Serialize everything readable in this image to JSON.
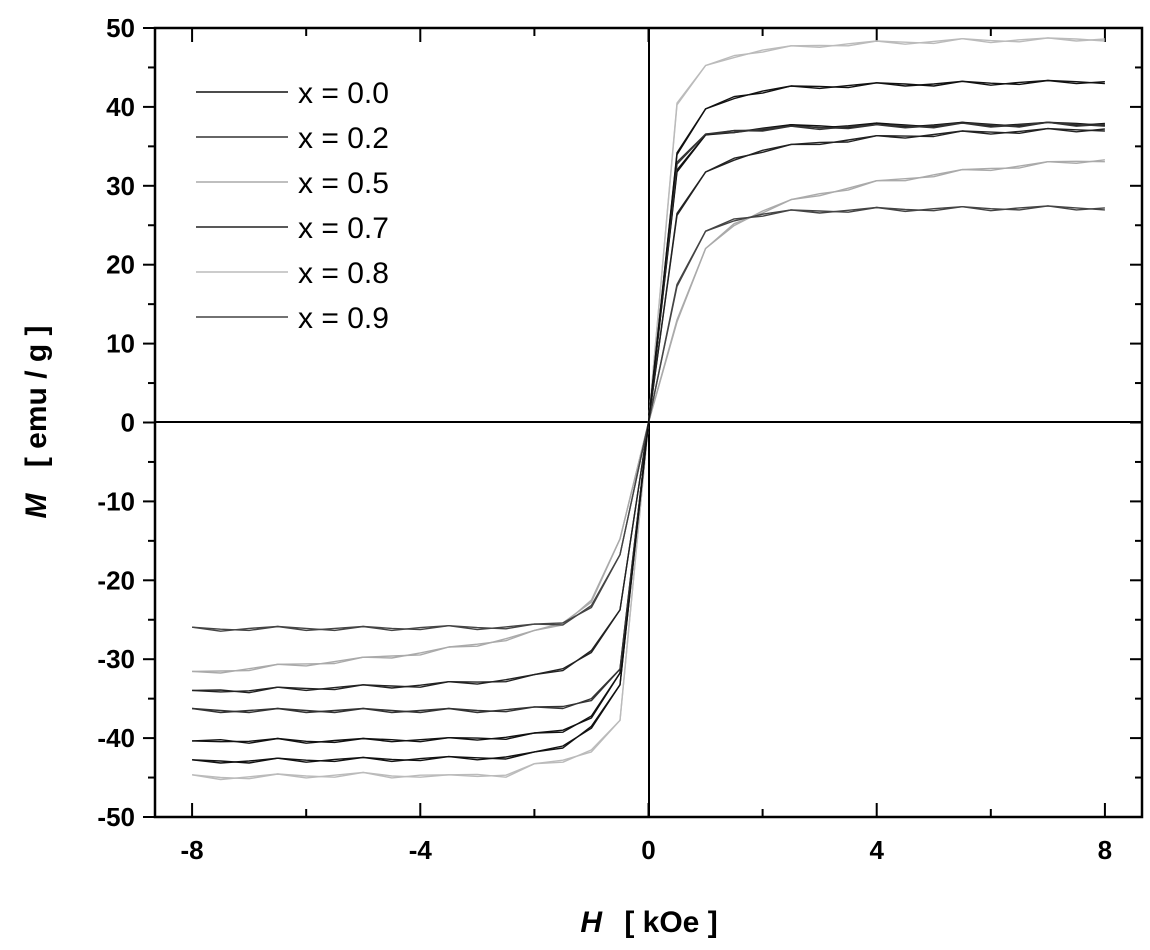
{
  "chart_data": {
    "type": "line",
    "title": "",
    "xlabel": {
      "symbol": "H",
      "unit": "[ kOe ]"
    },
    "ylabel": {
      "symbol": "M",
      "unit": "[ emu / g ]"
    },
    "xlim": [
      -8.65,
      8.65
    ],
    "ylim": [
      -50,
      50
    ],
    "x_ticks": [
      -8,
      -4,
      0,
      4,
      8
    ],
    "x_minor_ticks": [
      -6,
      -2,
      2,
      6
    ],
    "y_ticks": [
      -50,
      -40,
      -30,
      -20,
      -10,
      0,
      10,
      20,
      30,
      40,
      50
    ],
    "y_minor_ticks": [
      -45,
      -35,
      -25,
      -15,
      -5,
      5,
      15,
      25,
      35,
      45
    ],
    "x_tick_labels": [
      "-8",
      "-4",
      "0",
      "4",
      "8"
    ],
    "y_tick_labels": [
      "-50",
      "-40",
      "-30",
      "-20",
      "-10",
      "0",
      "10",
      "20",
      "30",
      "40",
      "50"
    ],
    "zero_lines": true,
    "grid": false,
    "legend_position": "top-left",
    "x": [
      -8,
      -7.5,
      -7,
      -6.5,
      -6,
      -5.5,
      -5,
      -4.5,
      -4,
      -3.5,
      -3,
      -2.5,
      -2,
      -1.5,
      -1,
      -0.5,
      0,
      0.5,
      1,
      1.5,
      2,
      2.5,
      3,
      3.5,
      4,
      4.5,
      5,
      5.5,
      6,
      6.5,
      7,
      7.5,
      8
    ],
    "series": [
      {
        "name": "x = 0.0",
        "color": "#111111",
        "values": [
          -40.6,
          -40.2,
          -40.4,
          -40.3,
          -40.4,
          -40.3,
          -40.3,
          -40.2,
          -40.2,
          -40.2,
          -40.0,
          -39.9,
          -39.6,
          -39.0,
          -37.2,
          -32.0,
          0.0,
          32.0,
          36.2,
          37.0,
          37.3,
          37.5,
          37.6,
          37.6,
          37.7,
          37.7,
          37.7,
          37.8,
          37.8,
          37.8,
          37.8,
          37.9,
          37.9
        ]
      },
      {
        "name": "x = 0.2",
        "color": "#333333",
        "values": [
          -36.5,
          -36.5,
          -36.5,
          -36.5,
          -36.5,
          -36.5,
          -36.5,
          -36.5,
          -36.5,
          -36.5,
          -36.5,
          -36.4,
          -36.3,
          -36.0,
          -35.0,
          -31.5,
          0.0,
          33.0,
          36.3,
          37.0,
          37.2,
          37.3,
          37.4,
          37.5,
          37.5,
          37.6,
          37.6,
          37.7,
          37.7,
          37.7,
          37.8,
          37.8,
          37.8
        ]
      },
      {
        "name": "x = 0.5",
        "color": "#aaaaaa",
        "values": [
          -31.8,
          -31.5,
          -31.2,
          -30.9,
          -30.6,
          -30.3,
          -30.0,
          -29.6,
          -29.2,
          -28.7,
          -28.1,
          -27.4,
          -26.6,
          -25.4,
          -22.5,
          -15.0,
          0.0,
          13.0,
          21.8,
          25.2,
          26.8,
          28.0,
          29.0,
          29.7,
          30.4,
          30.9,
          31.4,
          31.8,
          32.2,
          32.5,
          32.8,
          33.1,
          33.3
        ]
      },
      {
        "name": "x = 0.7",
        "color": "#222222",
        "values": [
          -34.2,
          -33.9,
          -34.0,
          -33.8,
          -33.7,
          -33.6,
          -33.5,
          -33.4,
          -33.3,
          -33.1,
          -32.9,
          -32.6,
          -32.2,
          -31.2,
          -28.9,
          -24.0,
          0.0,
          26.5,
          31.5,
          33.5,
          34.5,
          35.0,
          35.5,
          35.8,
          36.1,
          36.3,
          36.5,
          36.7,
          36.8,
          36.9,
          37.0,
          37.1,
          37.2
        ]
      },
      {
        "name": "x = 0.8",
        "color": "#bbbbbb",
        "values": [
          -44.9,
          -45.0,
          -44.9,
          -44.8,
          -44.8,
          -44.7,
          -44.6,
          -44.8,
          -44.7,
          -44.9,
          -44.6,
          -44.7,
          -43.5,
          -42.8,
          -41.5,
          -38.0,
          0.0,
          40.5,
          45.0,
          46.5,
          47.2,
          47.5,
          47.8,
          48.0,
          48.1,
          48.2,
          48.3,
          48.4,
          48.4,
          48.5,
          48.5,
          48.6,
          48.6
        ]
      },
      {
        "name": "x = 0.9",
        "color": "#444444",
        "values": [
          -26.2,
          -26.2,
          -26.1,
          -26.1,
          -26.1,
          -26.1,
          -26.1,
          -26.1,
          -26.0,
          -26.0,
          -26.0,
          -25.9,
          -25.8,
          -25.4,
          -23.2,
          -17.0,
          0.0,
          17.5,
          24.0,
          25.8,
          26.4,
          26.7,
          26.8,
          26.9,
          27.0,
          27.0,
          27.1,
          27.1,
          27.1,
          27.2,
          27.2,
          27.2,
          27.2
        ]
      },
      {
        "name": "",
        "color": "#111111",
        "values": [
          -43.0,
          -42.9,
          -42.9,
          -42.8,
          -42.8,
          -42.7,
          -42.7,
          -42.7,
          -42.6,
          -42.6,
          -42.5,
          -42.4,
          -42.0,
          -41.0,
          -38.5,
          -33.5,
          0.0,
          34.2,
          39.5,
          41.3,
          42.0,
          42.4,
          42.6,
          42.7,
          42.8,
          42.9,
          42.9,
          43.0,
          43.0,
          43.1,
          43.1,
          43.2,
          43.2
        ]
      }
    ]
  }
}
